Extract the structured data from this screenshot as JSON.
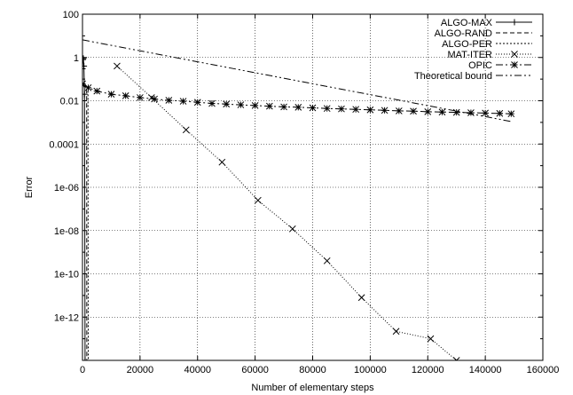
{
  "chart_data": {
    "type": "line",
    "xlabel": "Number of elementary steps",
    "ylabel": "Error",
    "xlim": [
      0,
      160000
    ],
    "ylim_log10": [
      -14,
      2
    ],
    "y_scale": "log",
    "grid": true,
    "legend_position": "top-right",
    "x_ticks": [
      0,
      20000,
      40000,
      60000,
      80000,
      100000,
      120000,
      140000,
      160000
    ],
    "x_tick_labels": [
      "0",
      "20000",
      "40000",
      "60000",
      "80000",
      "100000",
      "120000",
      "140000",
      "160000"
    ],
    "y_ticks_log10": [
      2,
      0,
      -2,
      -4,
      -6,
      -8,
      -10,
      -12
    ],
    "y_tick_labels": [
      "100",
      "1",
      "0.01",
      "0.0001",
      "1e-06",
      "1e-08",
      "1e-10",
      "1e-12"
    ],
    "series": [
      {
        "name": "ALGO-MAX",
        "marker": "+",
        "dash": "",
        "points": [
          [
            0,
            0.3
          ],
          [
            150,
            0.8
          ],
          [
            300,
            0.9
          ],
          [
            500,
            0.4
          ],
          [
            700,
            0.02
          ],
          [
            900,
            1e-14
          ]
        ]
      },
      {
        "name": "ALGO-RAND",
        "marker": "",
        "dash": "5,3",
        "points": [
          [
            0,
            0.06
          ],
          [
            300,
            0.05
          ],
          [
            700,
            0.04
          ],
          [
            1200,
            0.04
          ],
          [
            1450,
            0.03
          ],
          [
            1500,
            1e-14
          ]
        ]
      },
      {
        "name": "ALGO-PER",
        "marker": "",
        "dash": "2,2",
        "points": [
          [
            0,
            0.06
          ],
          [
            400,
            0.05
          ],
          [
            1000,
            0.05
          ],
          [
            1500,
            0.04
          ],
          [
            1900,
            0.04
          ],
          [
            2000,
            1e-14
          ]
        ]
      },
      {
        "name": "MAT-ITER",
        "marker": "x",
        "dash": "1,2",
        "points": [
          [
            12000,
            0.4
          ],
          [
            24000,
            0.014
          ],
          [
            36000,
            0.00045
          ],
          [
            48500,
            1.45e-05
          ],
          [
            61000,
            2.5e-07
          ],
          [
            73000,
            1.2e-08
          ],
          [
            85000,
            4e-10
          ],
          [
            97000,
            8e-12
          ],
          [
            109000,
            2.2e-13
          ],
          [
            121000,
            1e-13
          ],
          [
            130000,
            1e-14
          ]
        ]
      },
      {
        "name": "OPIC",
        "marker": "*",
        "dash": "8,3,2,3",
        "points": [
          [
            0,
            0.06
          ],
          [
            2000,
            0.04
          ],
          [
            5000,
            0.028
          ],
          [
            10000,
            0.02
          ],
          [
            15000,
            0.017
          ],
          [
            20000,
            0.014
          ],
          [
            25000,
            0.012
          ],
          [
            30000,
            0.0105
          ],
          [
            35000,
            0.0095
          ],
          [
            40000,
            0.0085
          ],
          [
            45000,
            0.0075
          ],
          [
            50000,
            0.007
          ],
          [
            55000,
            0.0065
          ],
          [
            60000,
            0.006
          ],
          [
            65000,
            0.0056
          ],
          [
            70000,
            0.0052
          ],
          [
            75000,
            0.005
          ],
          [
            80000,
            0.0047
          ],
          [
            85000,
            0.0044
          ],
          [
            90000,
            0.0042
          ],
          [
            95000,
            0.004
          ],
          [
            100000,
            0.0038
          ],
          [
            105000,
            0.0036
          ],
          [
            110000,
            0.0034
          ],
          [
            115000,
            0.0033
          ],
          [
            120000,
            0.0031
          ],
          [
            125000,
            0.003
          ],
          [
            130000,
            0.0029
          ],
          [
            135000,
            0.0028
          ],
          [
            140000,
            0.0027
          ],
          [
            145000,
            0.0026
          ],
          [
            149000,
            0.0025
          ]
        ]
      },
      {
        "name": "Theoretical bound",
        "marker": "",
        "dash": "8,3,2,3,2,3",
        "points": [
          [
            0,
            6.5
          ],
          [
            149000,
            0.0011
          ]
        ]
      }
    ]
  }
}
